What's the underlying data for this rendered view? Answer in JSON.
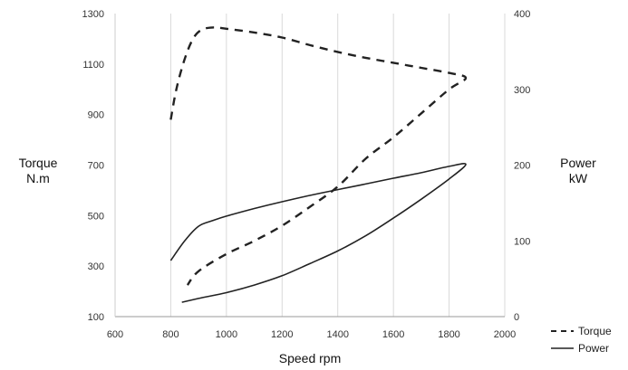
{
  "chart_data": {
    "type": "line",
    "xlabel": "Speed rpm",
    "ylabel_left": [
      "Torque",
      "N.m"
    ],
    "ylabel_right": [
      "Power",
      "kW"
    ],
    "xlim": [
      600,
      2000
    ],
    "x_ticks": [
      600,
      800,
      1000,
      1200,
      1400,
      1600,
      1800,
      2000
    ],
    "ylim_left": [
      100,
      1300
    ],
    "y_ticks_left": [
      100,
      300,
      500,
      700,
      900,
      1100,
      1300
    ],
    "ylim_right": [
      0,
      400
    ],
    "y_ticks_right": [
      0,
      100,
      200,
      300,
      400
    ],
    "grid": "vertical",
    "legend": "bottom-right",
    "series": [
      {
        "name": "Torque",
        "style": "dashed",
        "axis": "left",
        "points": [
          [
            800,
            880
          ],
          [
            820,
            1000
          ],
          [
            850,
            1120
          ],
          [
            880,
            1200
          ],
          [
            910,
            1235
          ],
          [
            950,
            1245
          ],
          [
            1000,
            1240
          ],
          [
            1100,
            1225
          ],
          [
            1200,
            1205
          ],
          [
            1300,
            1175
          ],
          [
            1400,
            1148
          ],
          [
            1500,
            1125
          ],
          [
            1600,
            1105
          ],
          [
            1700,
            1085
          ],
          [
            1800,
            1065
          ],
          [
            1860,
            1045
          ],
          [
            1800,
            1000
          ],
          [
            1700,
            905
          ],
          [
            1600,
            810
          ],
          [
            1500,
            725
          ],
          [
            1400,
            615
          ],
          [
            1300,
            535
          ],
          [
            1200,
            460
          ],
          [
            1100,
            400
          ],
          [
            1000,
            348
          ],
          [
            900,
            280
          ],
          [
            860,
            225
          ]
        ]
      },
      {
        "name": "Power",
        "style": "solid",
        "axis": "left",
        "points": [
          [
            800,
            322
          ],
          [
            850,
            400
          ],
          [
            900,
            458
          ],
          [
            950,
            480
          ],
          [
            1000,
            498
          ],
          [
            1100,
            528
          ],
          [
            1200,
            555
          ],
          [
            1300,
            580
          ],
          [
            1400,
            603
          ],
          [
            1500,
            625
          ],
          [
            1600,
            648
          ],
          [
            1700,
            670
          ],
          [
            1800,
            695
          ],
          [
            1860,
            703
          ],
          [
            1800,
            645
          ],
          [
            1700,
            565
          ],
          [
            1600,
            490
          ],
          [
            1500,
            420
          ],
          [
            1400,
            360
          ],
          [
            1300,
            310
          ],
          [
            1200,
            262
          ],
          [
            1100,
            225
          ],
          [
            1000,
            195
          ],
          [
            900,
            172
          ],
          [
            840,
            157
          ]
        ]
      }
    ]
  }
}
